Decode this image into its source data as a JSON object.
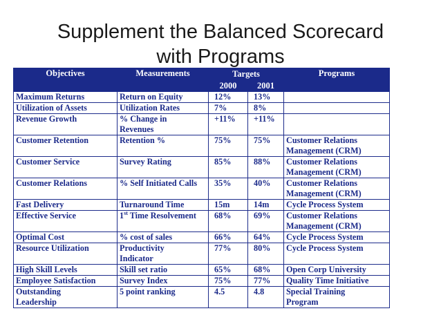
{
  "slide": {
    "title_line1": "Supplement the Balanced Scorecard",
    "title_line2": "with Programs"
  },
  "table": {
    "headers": {
      "objectives": "Objectives",
      "measurements": "Measurements",
      "targets": "Targets",
      "year1": "2000",
      "year2": "2001",
      "programs": "Programs"
    },
    "rows": [
      {
        "objective": [
          "Maximum Returns"
        ],
        "measurement": [
          "Return on Equity"
        ],
        "t2000": "12%",
        "t2001": "13%",
        "program": []
      },
      {
        "objective": [
          "Utilization of Assets"
        ],
        "measurement": [
          "Utilization Rates"
        ],
        "t2000": "7%",
        "t2001": "8%",
        "program": []
      },
      {
        "objective": [
          "Revenue Growth"
        ],
        "measurement": [
          "% Change in",
          "Revenues"
        ],
        "t2000": "+11%",
        "t2001": "+11%",
        "program": []
      },
      {
        "objective": [
          "Customer Retention"
        ],
        "measurement": [
          "Retention %"
        ],
        "t2000": "75%",
        "t2001": "75%",
        "program": [
          "Customer Relations",
          "Management (CRM)"
        ]
      },
      {
        "objective": [
          "Customer Service"
        ],
        "measurement": [
          "Survey Rating"
        ],
        "t2000": "85%",
        "t2001": "88%",
        "program": [
          "Customer Relations",
          "Management (CRM)"
        ]
      },
      {
        "objective": [
          "Customer Relations"
        ],
        "measurement": [
          "% Self Initiated Calls"
        ],
        "t2000": "35%",
        "t2001": "40%",
        "program": [
          "Customer Relations",
          "Management (CRM)"
        ]
      },
      {
        "objective": [
          "Fast Delivery"
        ],
        "measurement": [
          "Turnaround Time"
        ],
        "t2000": "15m",
        "t2001": "14m",
        "program": [
          "Cycle Process System"
        ]
      },
      {
        "objective": [
          "Effective Service"
        ],
        "measurement": [
          "1st Time Resolvement"
        ],
        "t2000": "68%",
        "t2001": "69%",
        "program": [
          "Customer Relations",
          "Management (CRM)"
        ]
      },
      {
        "objective": [
          "Optimal Cost"
        ],
        "measurement": [
          "% cost of sales"
        ],
        "t2000": "66%",
        "t2001": "64%",
        "program": [
          "Cycle Process System"
        ]
      },
      {
        "objective": [
          "Resource Utilization"
        ],
        "measurement": [
          "Productivity",
          "Indicator"
        ],
        "t2000": "77%",
        "t2001": "80%",
        "program": [
          "Cycle Process System"
        ]
      },
      {
        "objective": [
          "High Skill Levels"
        ],
        "measurement": [
          "Skill set ratio"
        ],
        "t2000": "65%",
        "t2001": "68%",
        "program": [
          "Open Corp University"
        ]
      },
      {
        "objective": [
          "Employee Satisfaction"
        ],
        "measurement": [
          "Survey Index"
        ],
        "t2000": "75%",
        "t2001": "77%",
        "program": [
          "Quality Time Initiative"
        ]
      },
      {
        "objective": [
          "Outstanding",
          "Leadership"
        ],
        "measurement": [
          "5 point ranking"
        ],
        "t2000": "4.5",
        "t2001": "4.8",
        "program": [
          "Special Training",
          "Program"
        ]
      }
    ]
  },
  "colors": {
    "header_bg": "#1b2a8a",
    "text": "#1b2a8a",
    "title": "#1a1a1a"
  }
}
